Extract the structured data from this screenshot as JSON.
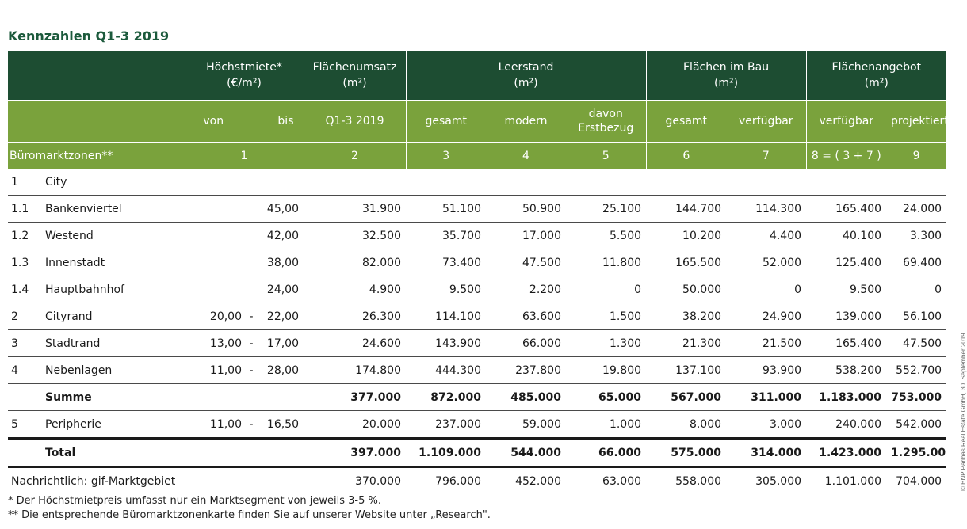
{
  "title": "Kennzahlen Q1-3 2019",
  "header": {
    "hoechstmiete": "Höchstmiete*",
    "hoechstmiete_unit": "(€/m²)",
    "flaechenumsatz": "Flächenumsatz",
    "flaechenumsatz_unit": "(m²)",
    "leerstand": "Leerstand",
    "leerstand_unit": "(m²)",
    "flaechen_im_bau": "Flächen im Bau",
    "flaechen_im_bau_unit": "(m²)",
    "flaechenangebot": "Flächenangebot",
    "flaechenangebot_unit": "(m²)",
    "sub": {
      "von": "von",
      "bis": "bis",
      "q": "Q1-3 2019",
      "gesamt1": "gesamt",
      "modern": "modern",
      "erstbezug_1": "davon",
      "erstbezug_2": "Erstbezug",
      "gesamt2": "gesamt",
      "verfuegbar1": "verfügbar",
      "verfuegbar2": "verfügbar",
      "projektiert": "projektiert"
    },
    "zone_label": "Büromarktzonen**",
    "index": {
      "c1": "1",
      "c2": "2",
      "c3": "3",
      "c4": "4",
      "c5": "5",
      "c6": "6",
      "c7": "7",
      "c8": "8 = ( 3 + 7 )",
      "c9": "9"
    }
  },
  "rows": [
    {
      "num": "1",
      "name": "City",
      "von": "",
      "dash": "",
      "bis": "",
      "c2": "",
      "c3": "",
      "c4": "",
      "c5": "",
      "c6": "",
      "c7": "",
      "c8": "",
      "c9": ""
    },
    {
      "num": "1.1",
      "name": "Bankenviertel",
      "von": "",
      "dash": "",
      "bis": "45,00",
      "c2": "31.900",
      "c3": "51.100",
      "c4": "50.900",
      "c5": "25.100",
      "c6": "144.700",
      "c7": "114.300",
      "c8": "165.400",
      "c9": "24.000"
    },
    {
      "num": "1.2",
      "name": "Westend",
      "von": "",
      "dash": "",
      "bis": "42,00",
      "c2": "32.500",
      "c3": "35.700",
      "c4": "17.000",
      "c5": "5.500",
      "c6": "10.200",
      "c7": "4.400",
      "c8": "40.100",
      "c9": "3.300"
    },
    {
      "num": "1.3",
      "name": "Innenstadt",
      "von": "",
      "dash": "",
      "bis": "38,00",
      "c2": "82.000",
      "c3": "73.400",
      "c4": "47.500",
      "c5": "11.800",
      "c6": "165.500",
      "c7": "52.000",
      "c8": "125.400",
      "c9": "69.400"
    },
    {
      "num": "1.4",
      "name": "Hauptbahnhof",
      "von": "",
      "dash": "",
      "bis": "24,00",
      "c2": "4.900",
      "c3": "9.500",
      "c4": "2.200",
      "c5": "0",
      "c6": "50.000",
      "c7": "0",
      "c8": "9.500",
      "c9": "0"
    },
    {
      "num": "2",
      "name": "Cityrand",
      "von": "20,00",
      "dash": "-",
      "bis": "22,00",
      "c2": "26.300",
      "c3": "114.100",
      "c4": "63.600",
      "c5": "1.500",
      "c6": "38.200",
      "c7": "24.900",
      "c8": "139.000",
      "c9": "56.100"
    },
    {
      "num": "3",
      "name": "Stadtrand",
      "von": "13,00",
      "dash": "-",
      "bis": "17,00",
      "c2": "24.600",
      "c3": "143.900",
      "c4": "66.000",
      "c5": "1.300",
      "c6": "21.300",
      "c7": "21.500",
      "c8": "165.400",
      "c9": "47.500"
    },
    {
      "num": "4",
      "name": "Nebenlagen",
      "von": "11,00",
      "dash": "-",
      "bis": "28,00",
      "c2": "174.800",
      "c3": "444.300",
      "c4": "237.800",
      "c5": "19.800",
      "c6": "137.100",
      "c7": "93.900",
      "c8": "538.200",
      "c9": "552.700"
    }
  ],
  "summe": {
    "name": "Summe",
    "c2": "377.000",
    "c3": "872.000",
    "c4": "485.000",
    "c5": "65.000",
    "c6": "567.000",
    "c7": "311.000",
    "c8": "1.183.000",
    "c9": "753.000"
  },
  "peripherie": {
    "num": "5",
    "name": "Peripherie",
    "von": "11,00",
    "dash": "-",
    "bis": "16,50",
    "c2": "20.000",
    "c3": "237.000",
    "c4": "59.000",
    "c5": "1.000",
    "c6": "8.000",
    "c7": "3.000",
    "c8": "240.000",
    "c9": "542.000"
  },
  "total": {
    "name": "Total",
    "c2": "397.000",
    "c3": "1.109.000",
    "c4": "544.000",
    "c5": "66.000",
    "c6": "575.000",
    "c7": "314.000",
    "c8": "1.423.000",
    "c9": "1.295.000"
  },
  "memo": {
    "name": "Nachrichtlich: gif-Marktgebiet",
    "c2": "370.000",
    "c3": "796.000",
    "c4": "452.000",
    "c5": "63.000",
    "c6": "558.000",
    "c7": "305.000",
    "c8": "1.101.000",
    "c9": "704.000"
  },
  "footnotes": {
    "f1": "*  Der Höchstmietpreis umfasst nur ein Marktsegment von jeweils 3-5 %.",
    "f2": "** Die entsprechende Büromarktzonenkarte finden Sie auf unserer Website unter „Research\"."
  },
  "side_note": "© BNP Paribas Real Estate GmbH, 30. September 2019",
  "colors": {
    "dark_green": "#1d4d32",
    "light_green": "#7aa23c",
    "title_green": "#1c5a3c"
  }
}
